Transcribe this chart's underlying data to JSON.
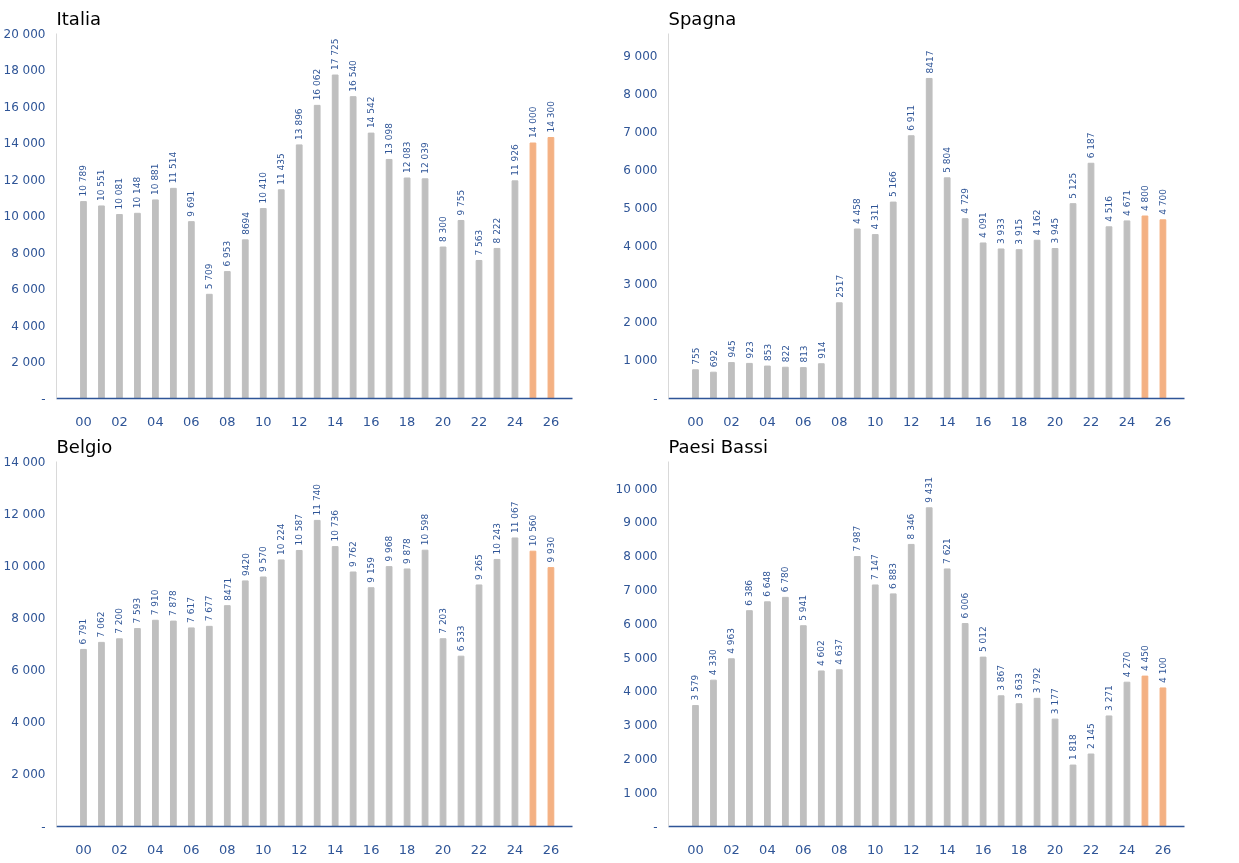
{
  "chart_data": [
    {
      "type": "bar",
      "title": "Italia",
      "categories": [
        "00",
        null,
        "02",
        null,
        "04",
        null,
        "06",
        null,
        "08",
        null,
        "10",
        null,
        "12",
        null,
        "14",
        null,
        "16",
        null,
        "18",
        null,
        "20",
        null,
        "22",
        null,
        "24",
        null,
        "26"
      ],
      "values": [
        10789,
        10551,
        10081,
        10148,
        10881,
        11514,
        9691,
        5709,
        6953,
        8694,
        10410,
        11435,
        13896,
        16062,
        17725,
        16540,
        14542,
        13098,
        12083,
        12039,
        8300,
        9755,
        7563,
        8222,
        11926,
        14000,
        14300
      ],
      "value_labels": [
        "10 789",
        "10 551",
        "10 081",
        "10 148",
        "10 881",
        "11 514",
        "9 691",
        "5 709",
        "6 953",
        "8694",
        "10 410",
        "11 435",
        "13 896",
        "16 062",
        "17 725",
        "16 540",
        "14 542",
        "13 098",
        "12 083",
        "12 039",
        "8 300",
        "9 755",
        "7 563",
        "8 222",
        "11 926",
        "14 000",
        "14 300"
      ],
      "colors": [
        "#bfbfbf",
        "#bfbfbf",
        "#bfbfbf",
        "#bfbfbf",
        "#bfbfbf",
        "#bfbfbf",
        "#bfbfbf",
        "#bfbfbf",
        "#bfbfbf",
        "#bfbfbf",
        "#bfbfbf",
        "#bfbfbf",
        "#bfbfbf",
        "#bfbfbf",
        "#bfbfbf",
        "#bfbfbf",
        "#bfbfbf",
        "#bfbfbf",
        "#bfbfbf",
        "#bfbfbf",
        "#bfbfbf",
        "#bfbfbf",
        "#bfbfbf",
        "#bfbfbf",
        "#bfbfbf",
        "#f4b183",
        "#f4b183"
      ],
      "ylim": [
        0,
        20000
      ],
      "yticks": [
        {
          "value": 0,
          "label": "-"
        },
        {
          "value": 2000,
          "label": "2 000"
        },
        {
          "value": 4000,
          "label": "4 000"
        },
        {
          "value": 6000,
          "label": "6 000"
        },
        {
          "value": 8000,
          "label": "8 000"
        },
        {
          "value": 10000,
          "label": "10 000"
        },
        {
          "value": 12000,
          "label": "12 000"
        },
        {
          "value": 14000,
          "label": "14 000"
        },
        {
          "value": 16000,
          "label": "16 000"
        },
        {
          "value": 18000,
          "label": "18 000"
        },
        {
          "value": 20000,
          "label": "20 000"
        }
      ]
    },
    {
      "type": "bar",
      "title": "Spagna",
      "categories": [
        "00",
        null,
        "02",
        null,
        "04",
        null,
        "06",
        null,
        "08",
        null,
        "10",
        null,
        "12",
        null,
        "14",
        null,
        "16",
        null,
        "18",
        null,
        "20",
        null,
        "22",
        null,
        "24",
        null,
        "26"
      ],
      "values": [
        755,
        692,
        945,
        923,
        853,
        822,
        813,
        914,
        2517,
        4458,
        4311,
        5166,
        6911,
        8417,
        5804,
        4729,
        4091,
        3933,
        3915,
        4162,
        3945,
        5125,
        6187,
        4516,
        4671,
        4800,
        4700
      ],
      "value_labels": [
        "755",
        "692",
        "945",
        "923",
        "853",
        "822",
        "813",
        "914",
        "2517",
        "4 458",
        "4 311",
        "5 166",
        "6 911",
        "8417",
        "5 804",
        "4 729",
        "4 091",
        "3 933",
        "3 915",
        "4 162",
        "3 945",
        "5 125",
        "6 187",
        "4 516",
        "4 671",
        "4 800",
        "4 700"
      ],
      "colors": [
        "#bfbfbf",
        "#bfbfbf",
        "#bfbfbf",
        "#bfbfbf",
        "#bfbfbf",
        "#bfbfbf",
        "#bfbfbf",
        "#bfbfbf",
        "#bfbfbf",
        "#bfbfbf",
        "#bfbfbf",
        "#bfbfbf",
        "#bfbfbf",
        "#bfbfbf",
        "#bfbfbf",
        "#bfbfbf",
        "#bfbfbf",
        "#bfbfbf",
        "#bfbfbf",
        "#bfbfbf",
        "#bfbfbf",
        "#bfbfbf",
        "#bfbfbf",
        "#bfbfbf",
        "#bfbfbf",
        "#f4b183",
        "#f4b183"
      ],
      "ylim": [
        0,
        9600
      ],
      "yticks": [
        {
          "value": 0,
          "label": "-"
        },
        {
          "value": 1000,
          "label": "1 000"
        },
        {
          "value": 2000,
          "label": "2 000"
        },
        {
          "value": 3000,
          "label": "3 000"
        },
        {
          "value": 4000,
          "label": "4 000"
        },
        {
          "value": 5000,
          "label": "5 000"
        },
        {
          "value": 6000,
          "label": "6 000"
        },
        {
          "value": 7000,
          "label": "7 000"
        },
        {
          "value": 8000,
          "label": "8 000"
        },
        {
          "value": 9000,
          "label": "9 000"
        }
      ]
    },
    {
      "type": "bar",
      "title": "Belgio",
      "categories": [
        "00",
        null,
        "02",
        null,
        "04",
        null,
        "06",
        null,
        "08",
        null,
        "10",
        null,
        "12",
        null,
        "14",
        null,
        "16",
        null,
        "18",
        null,
        "20",
        null,
        "22",
        null,
        "24",
        null,
        "26"
      ],
      "values": [
        6791,
        7062,
        7200,
        7593,
        7910,
        7878,
        7617,
        7677,
        8471,
        9420,
        9570,
        10224,
        10587,
        11740,
        10736,
        9762,
        9159,
        9968,
        9878,
        10598,
        7203,
        6533,
        9265,
        10243,
        11067,
        10560,
        9930
      ],
      "value_labels": [
        "6 791",
        "7 062",
        "7 200",
        "7 593",
        "7 910",
        "7 878",
        "7 617",
        "7 677",
        "8471",
        "9420",
        "9 570",
        "10 224",
        "10 587",
        "11 740",
        "10 736",
        "9 762",
        "9 159",
        "9 968",
        "9 878",
        "10 598",
        "7 203",
        "6 533",
        "9 265",
        "10 243",
        "11 067",
        "10 560",
        "9 930"
      ],
      "colors": [
        "#bfbfbf",
        "#bfbfbf",
        "#bfbfbf",
        "#bfbfbf",
        "#bfbfbf",
        "#bfbfbf",
        "#bfbfbf",
        "#bfbfbf",
        "#bfbfbf",
        "#bfbfbf",
        "#bfbfbf",
        "#bfbfbf",
        "#bfbfbf",
        "#bfbfbf",
        "#bfbfbf",
        "#bfbfbf",
        "#bfbfbf",
        "#bfbfbf",
        "#bfbfbf",
        "#bfbfbf",
        "#bfbfbf",
        "#bfbfbf",
        "#bfbfbf",
        "#bfbfbf",
        "#bfbfbf",
        "#f4b183",
        "#f4b183"
      ],
      "ylim": [
        0,
        14000
      ],
      "yticks": [
        {
          "value": 0,
          "label": "-"
        },
        {
          "value": 2000,
          "label": "2 000"
        },
        {
          "value": 4000,
          "label": "4 000"
        },
        {
          "value": 6000,
          "label": "6 000"
        },
        {
          "value": 8000,
          "label": "8 000"
        },
        {
          "value": 10000,
          "label": "10 000"
        },
        {
          "value": 12000,
          "label": "12 000"
        },
        {
          "value": 14000,
          "label": "14 000"
        }
      ]
    },
    {
      "type": "bar",
      "title": "Paesi Bassi",
      "categories": [
        "00",
        null,
        "02",
        null,
        "04",
        null,
        "06",
        null,
        "08",
        null,
        "10",
        null,
        "12",
        null,
        "14",
        null,
        "16",
        null,
        "18",
        null,
        "20",
        null,
        "22",
        null,
        "24",
        null,
        "26"
      ],
      "values": [
        3579,
        4330,
        4963,
        6386,
        6648,
        6780,
        5941,
        4602,
        4637,
        7987,
        7147,
        6883,
        8346,
        9431,
        7621,
        6006,
        5012,
        3867,
        3633,
        3792,
        3177,
        1818,
        2145,
        3271,
        4270,
        4450,
        4100
      ],
      "value_labels": [
        "3 579",
        "4 330",
        "4 963",
        "6 386",
        "6 648",
        "6 780",
        "5 941",
        "4 602",
        "4 637",
        "7 987",
        "7 147",
        "6 883",
        "8 346",
        "9 431",
        "7 621",
        "6 006",
        "5 012",
        "3 867",
        "3 633",
        "3 792",
        "3 177",
        "1 818",
        "2 145",
        "3 271",
        "4 270",
        "4 450",
        "4 100"
      ],
      "colors": [
        "#bfbfbf",
        "#bfbfbf",
        "#bfbfbf",
        "#bfbfbf",
        "#bfbfbf",
        "#bfbfbf",
        "#bfbfbf",
        "#bfbfbf",
        "#bfbfbf",
        "#bfbfbf",
        "#bfbfbf",
        "#bfbfbf",
        "#bfbfbf",
        "#bfbfbf",
        "#bfbfbf",
        "#bfbfbf",
        "#bfbfbf",
        "#bfbfbf",
        "#bfbfbf",
        "#bfbfbf",
        "#bfbfbf",
        "#bfbfbf",
        "#bfbfbf",
        "#bfbfbf",
        "#bfbfbf",
        "#f4b183",
        "#f4b183"
      ],
      "ylim": [
        0,
        10800
      ],
      "yticks": [
        {
          "value": 0,
          "label": "-"
        },
        {
          "value": 1000,
          "label": "1 000"
        },
        {
          "value": 2000,
          "label": "2 000"
        },
        {
          "value": 3000,
          "label": "3 000"
        },
        {
          "value": 4000,
          "label": "4 000"
        },
        {
          "value": 5000,
          "label": "5 000"
        },
        {
          "value": 6000,
          "label": "6 000"
        },
        {
          "value": 7000,
          "label": "7 000"
        },
        {
          "value": 8000,
          "label": "8 000"
        },
        {
          "value": 9000,
          "label": "9 000"
        },
        {
          "value": 10000,
          "label": "10 000"
        }
      ]
    }
  ]
}
